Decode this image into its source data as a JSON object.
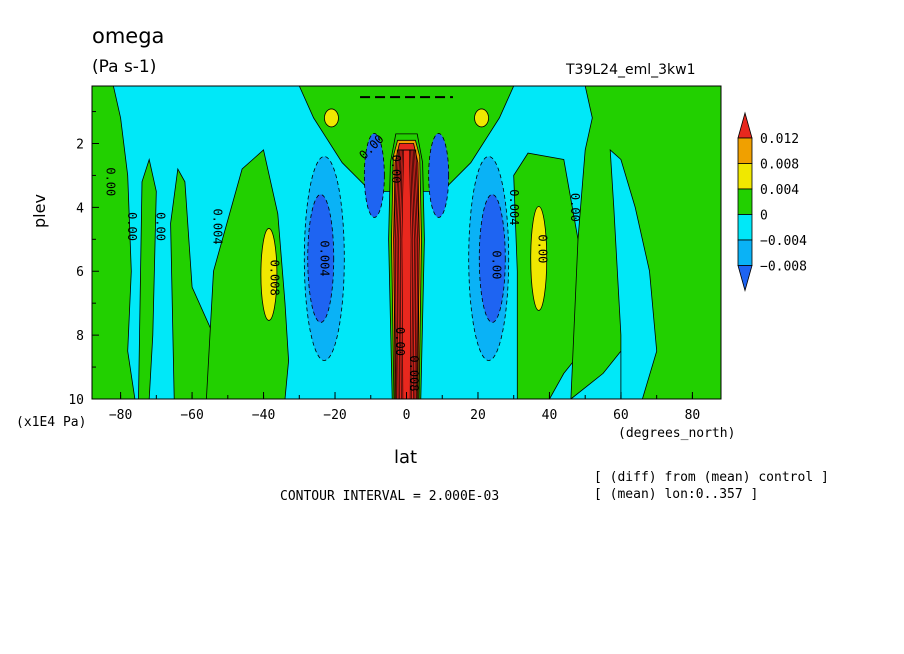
{
  "header": {
    "title": "omega",
    "units": "(Pa s-1)",
    "run_name": "T39L24_eml_3kw1"
  },
  "footer": {
    "contour_interval": "CONTOUR INTERVAL = 2.000E-03",
    "note_line1": "[ (diff) from (mean) control ]",
    "note_line2": "[ (mean) lon:0..357 ]"
  },
  "chart_data": {
    "type": "heatmap",
    "title": "omega",
    "subtitle": "(Pa s-1)",
    "xlabel": "lat",
    "xunit": "(degrees_north)",
    "ylabel": "plev",
    "yunit": "(x1E4 Pa)",
    "xlim": [
      -88,
      88
    ],
    "ylim": [
      0.2,
      10
    ],
    "y_inverted": true,
    "x_ticks": [
      -80,
      -60,
      -40,
      -20,
      0,
      20,
      40,
      60,
      80
    ],
    "y_ticks": [
      2,
      4,
      6,
      8,
      10
    ],
    "contour_interval": 0.002,
    "colorbar": {
      "levels": [
        "0.012",
        "0.008",
        "0.004",
        "0",
        "−0.004",
        "−0.008"
      ],
      "colors": {
        "red": "#e8281e",
        "orange": "#f0a000",
        "yellow": "#f0e800",
        "green": "#22d000",
        "cyan": "#00e8f8",
        "lightblue": "#0ab2f6",
        "blue": "#1e64f2"
      }
    },
    "contour_labels": [
      "0.00",
      "0.00",
      "0.00",
      "0.004",
      "0.008",
      "0.004",
      "0.00",
      "0.00",
      "0.00",
      "0.008",
      "0.004",
      "0.00",
      "0.00",
      "0.00"
    ],
    "features": [
      {
        "lat": 0,
        "plev_top": 1.7,
        "plev_bottom": 10,
        "value": 0.012,
        "kind": "ascent core"
      },
      {
        "lat": -24,
        "plev": 5.5,
        "value": -0.008,
        "kind": "subsidence"
      },
      {
        "lat": 24,
        "plev": 5.5,
        "value": -0.008,
        "kind": "subsidence"
      },
      {
        "lat": -38,
        "plev": 6.0,
        "value": 0.004,
        "kind": "weak ascent"
      },
      {
        "lat": 37,
        "plev": 5.5,
        "value": 0.004,
        "kind": "weak ascent"
      },
      {
        "lat": -20,
        "plev": 1.0,
        "value": 0.004,
        "kind": "upper ascent"
      },
      {
        "lat": 20,
        "plev": 1.0,
        "value": 0.004,
        "kind": "upper ascent"
      }
    ]
  }
}
